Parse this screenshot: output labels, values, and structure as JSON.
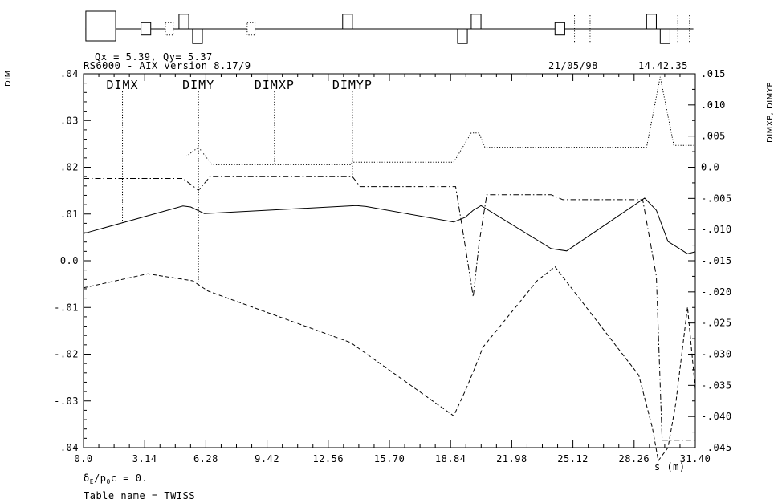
{
  "header": {
    "tunes": "Qx = 5.39, Qy= 5.37",
    "version": "RS6000 - AIX version 8.17/9",
    "date": "21/05/98",
    "time": "14.42.35"
  },
  "footer": {
    "delta": "δE/p0c = 0.",
    "table": "Table name = TWISS"
  },
  "chart_data": {
    "type": "line",
    "xlabel": "s (m)",
    "ylabel": "DIM",
    "ylabel_right": "DIMXP, DIMYP",
    "xlim": [
      0,
      31.4
    ],
    "ylim": [
      -0.04,
      0.04
    ],
    "ylim_right": [
      -0.045,
      0.015
    ],
    "x_ticks": [
      "0.0",
      "3.14",
      "6.28",
      "9.42",
      "12.56",
      "15.70",
      "18.84",
      "21.98",
      "25.12",
      "28.26",
      "31.40"
    ],
    "y_ticks": [
      ".04",
      ".03",
      ".02",
      ".01",
      "0.0",
      "-.01",
      "-.02",
      "-.03",
      "-.04"
    ],
    "y_ticks_right": [
      ".015",
      ".010",
      ".005",
      "0.0",
      "-.005",
      "-.010",
      "-.015",
      "-.020",
      "-.025",
      "-.030",
      "-.035",
      "-.040",
      "-.045"
    ],
    "legend": [
      {
        "name": "DIMX",
        "line_style": "solid",
        "marker_s": 2.0
      },
      {
        "name": "DIMY",
        "line_style": "dashed",
        "marker_s": 5.9
      },
      {
        "name": "DIMXP",
        "line_style": "dotted",
        "marker_s": 9.8
      },
      {
        "name": "DIMYP",
        "line_style": "dashdot",
        "marker_s": 13.8
      }
    ],
    "series": [
      {
        "name": "DIMX",
        "axis": "left",
        "line_style": "solid",
        "points": [
          [
            0,
            0.0058
          ],
          [
            5.1,
            0.0117
          ],
          [
            5.5,
            0.0115
          ],
          [
            6.2,
            0.0101
          ],
          [
            14.0,
            0.0118
          ],
          [
            14.5,
            0.0116
          ],
          [
            19.0,
            0.0083
          ],
          [
            19.6,
            0.0093
          ],
          [
            20.0,
            0.0108
          ],
          [
            20.4,
            0.0118
          ],
          [
            24.0,
            0.0026
          ],
          [
            24.8,
            0.0021
          ],
          [
            28.8,
            0.0134
          ],
          [
            29.4,
            0.0108
          ],
          [
            30.0,
            0.0041
          ],
          [
            31.0,
            0.0015
          ],
          [
            31.4,
            0.0019
          ]
        ]
      },
      {
        "name": "DIMY",
        "axis": "left",
        "line_style": "dashed",
        "points": [
          [
            0,
            -0.0058
          ],
          [
            3.3,
            -0.0028
          ],
          [
            5.6,
            -0.0043
          ],
          [
            6.4,
            -0.0065
          ],
          [
            13.7,
            -0.0175
          ],
          [
            19.0,
            -0.0332
          ],
          [
            19.6,
            -0.0278
          ],
          [
            20.1,
            -0.0228
          ],
          [
            20.5,
            -0.0185
          ],
          [
            23.3,
            -0.0042
          ],
          [
            24.2,
            -0.0013
          ],
          [
            28.5,
            -0.0245
          ],
          [
            29.2,
            -0.0358
          ],
          [
            29.5,
            -0.0428
          ],
          [
            30.0,
            -0.04
          ],
          [
            30.4,
            -0.0305
          ],
          [
            31.0,
            -0.0099
          ],
          [
            31.4,
            -0.0275
          ]
        ]
      },
      {
        "name": "DIMXP",
        "axis": "right",
        "line_style": "dotted",
        "points": [
          [
            0,
            0.0018
          ],
          [
            5.3,
            0.0018
          ],
          [
            5.9,
            0.0032
          ],
          [
            6.6,
            0.0004
          ],
          [
            13.7,
            0.0004
          ],
          [
            13.8,
            0.0008
          ],
          [
            19.0,
            0.0008
          ],
          [
            19.9,
            0.0055
          ],
          [
            20.3,
            0.0055
          ],
          [
            20.6,
            0.0032
          ],
          [
            28.9,
            0.0032
          ],
          [
            29.6,
            0.0145
          ],
          [
            30.3,
            0.0035
          ],
          [
            31.4,
            0.0035
          ]
        ]
      },
      {
        "name": "DIMYP",
        "axis": "right",
        "line_style": "dashdot",
        "points": [
          [
            0,
            -0.0018
          ],
          [
            5.1,
            -0.0018
          ],
          [
            5.9,
            -0.0037
          ],
          [
            6.5,
            -0.0015
          ],
          [
            13.8,
            -0.0015
          ],
          [
            14.2,
            -0.0031
          ],
          [
            19.1,
            -0.0031
          ],
          [
            19.7,
            -0.0148
          ],
          [
            20.0,
            -0.0208
          ],
          [
            20.3,
            -0.0123
          ],
          [
            20.7,
            -0.0044
          ],
          [
            24.0,
            -0.0044
          ],
          [
            24.6,
            -0.0052
          ],
          [
            28.7,
            -0.0052
          ],
          [
            29.4,
            -0.0175
          ],
          [
            29.7,
            -0.0438
          ],
          [
            31.4,
            -0.0438
          ]
        ]
      }
    ]
  },
  "lattice": {
    "elements": [
      {
        "kind": "box",
        "x0": 0.12,
        "x1": 1.65,
        "pos": "up",
        "h": 1.0,
        "style": "solid"
      },
      {
        "kind": "box",
        "x0": 2.95,
        "x1": 3.45,
        "pos": "centered",
        "h": 0.55,
        "style": "solid"
      },
      {
        "kind": "box",
        "x0": 4.2,
        "x1": 4.6,
        "pos": "centered",
        "h": 0.55,
        "style": "dotted"
      },
      {
        "kind": "box",
        "x0": 4.9,
        "x1": 5.4,
        "pos": "up",
        "h": 0.65,
        "style": "solid"
      },
      {
        "kind": "box",
        "x0": 5.6,
        "x1": 6.1,
        "pos": "down",
        "h": 0.65,
        "style": "solid"
      },
      {
        "kind": "box",
        "x0": 8.4,
        "x1": 8.8,
        "pos": "centered",
        "h": 0.55,
        "style": "dotted"
      },
      {
        "kind": "box",
        "x0": 13.3,
        "x1": 13.8,
        "pos": "up",
        "h": 0.65,
        "style": "solid"
      },
      {
        "kind": "box",
        "x0": 19.2,
        "x1": 19.7,
        "pos": "down",
        "h": 0.65,
        "style": "solid"
      },
      {
        "kind": "box",
        "x0": 19.9,
        "x1": 20.4,
        "pos": "up",
        "h": 0.65,
        "style": "solid"
      },
      {
        "kind": "box",
        "x0": 24.2,
        "x1": 24.7,
        "pos": "centered",
        "h": 0.55,
        "style": "solid"
      },
      {
        "kind": "mark",
        "x0": 25.2,
        "style": "dotted"
      },
      {
        "kind": "mark",
        "x0": 26.0,
        "style": "dotted"
      },
      {
        "kind": "box",
        "x0": 28.9,
        "x1": 29.4,
        "pos": "up",
        "h": 0.65,
        "style": "solid"
      },
      {
        "kind": "box",
        "x0": 29.6,
        "x1": 30.1,
        "pos": "down",
        "h": 0.65,
        "style": "solid"
      },
      {
        "kind": "mark",
        "x0": 30.5,
        "style": "dotted"
      },
      {
        "kind": "mark",
        "x0": 31.1,
        "style": "dotted"
      }
    ]
  }
}
